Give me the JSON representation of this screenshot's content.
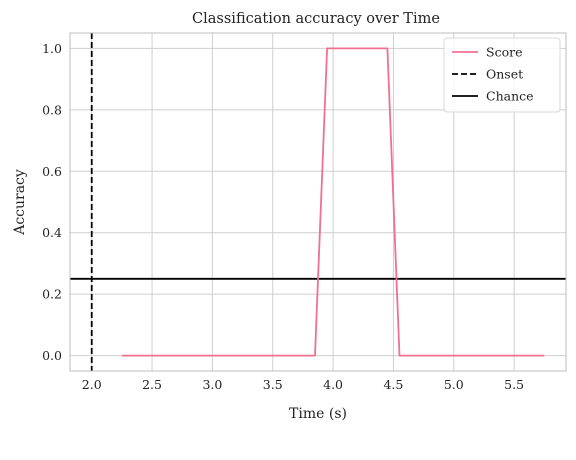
{
  "chart_data": {
    "type": "line",
    "title": "Classification accuracy over Time",
    "xlabel": "Time (s)",
    "ylabel": "Accuracy",
    "xlim": [
      1.82,
      5.93
    ],
    "ylim": [
      -0.05,
      1.05
    ],
    "xticks": [
      2.0,
      2.5,
      3.0,
      3.5,
      4.0,
      4.5,
      5.0,
      5.5
    ],
    "xtick_labels": [
      "2.0",
      "2.5",
      "3.0",
      "3.5",
      "4.0",
      "4.5",
      "5.0",
      "5.5"
    ],
    "yticks": [
      0.0,
      0.2,
      0.4,
      0.6,
      0.8,
      1.0
    ],
    "ytick_labels": [
      "0.0",
      "0.2",
      "0.4",
      "0.6",
      "0.8",
      "1.0"
    ],
    "grid": true,
    "legend_position": "top-right",
    "series": [
      {
        "name": "Score",
        "color": "#f0708f",
        "style": "solid",
        "x": [
          2.25,
          3.85,
          3.95,
          4.45,
          4.55,
          5.75
        ],
        "y": [
          0.0,
          0.0,
          1.0,
          1.0,
          0.0,
          0.0
        ]
      }
    ],
    "reference_lines": [
      {
        "name": "Onset",
        "orientation": "vertical",
        "value": 2.0,
        "color": "#000000",
        "style": "dashed"
      },
      {
        "name": "Chance",
        "orientation": "horizontal",
        "value": 0.25,
        "color": "#000000",
        "style": "solid"
      }
    ]
  }
}
